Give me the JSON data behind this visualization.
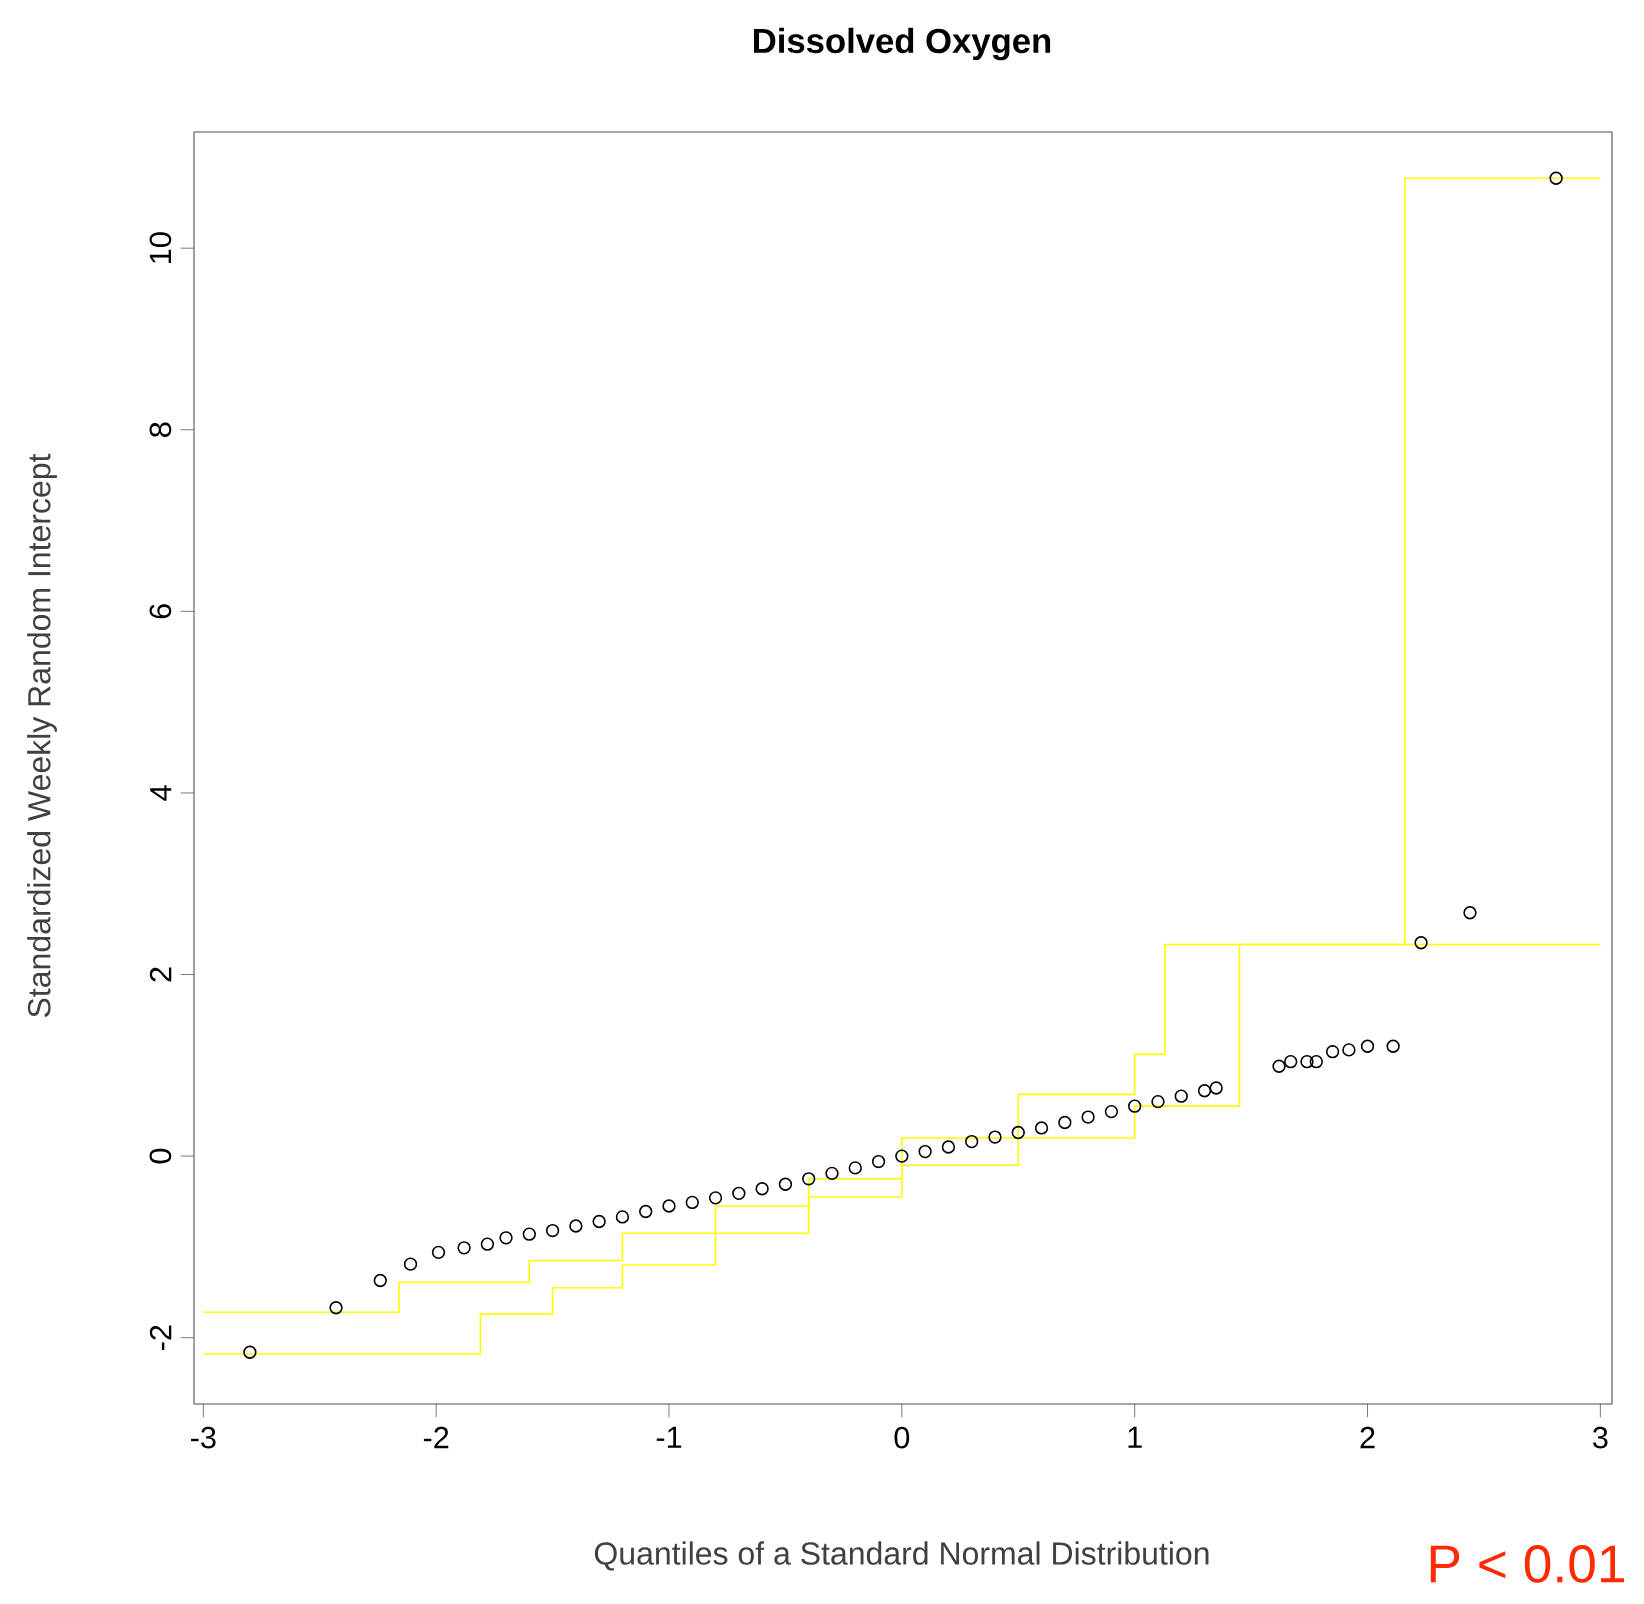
{
  "chart_data": {
    "type": "scatter",
    "title": "Dissolved Oxygen",
    "xlabel": "Quantiles of a Standard Normal Distribution",
    "ylabel": "Standardized Weekly Random Intercept",
    "annotations": [
      "P < 0.01"
    ],
    "xlim": [
      -3.04,
      3.05
    ],
    "ylim": [
      -2.73,
      11.28
    ],
    "xticks": [
      -3,
      -2,
      -1,
      0,
      1,
      2,
      3
    ],
    "yticks": [
      -2,
      0,
      2,
      4,
      6,
      8,
      10
    ],
    "series": [
      {
        "type": "step",
        "color": "#ffff00",
        "x": [
          -3,
          -2.16,
          -1.6,
          -1.2,
          -0.8,
          -0.4,
          0,
          0.5,
          1.0,
          1.13,
          2.16,
          3.0
        ],
        "values": [
          -1.72,
          -1.39,
          -1.15,
          -0.85,
          -0.55,
          -0.25,
          0.2,
          0.68,
          1.12,
          2.33,
          10.77,
          10.77
        ]
      },
      {
        "type": "step",
        "color": "#ffff00",
        "x": [
          -3,
          -1.81,
          -1.5,
          -1.2,
          -0.8,
          -0.4,
          0,
          0.5,
          1.0,
          1.45,
          3.0
        ],
        "values": [
          -2.18,
          -1.74,
          -1.45,
          -1.2,
          -0.85,
          -0.45,
          -0.1,
          0.2,
          0.55,
          2.33,
          2.33
        ]
      },
      {
        "type": "scatter",
        "color": "#000000",
        "marker": "circle",
        "x": [
          -2.8,
          -2.43,
          -2.24,
          -2.11,
          -1.99,
          -1.88,
          -1.78,
          -1.7,
          -1.6,
          -1.5,
          -1.4,
          -1.3,
          -1.2,
          -1.1,
          -1.0,
          -0.9,
          -0.8,
          -0.7,
          -0.6,
          -0.5,
          -0.4,
          -0.3,
          -0.2,
          -0.1,
          0,
          0.1,
          0.2,
          0.3,
          0.4,
          0.5,
          0.6,
          0.7,
          0.8,
          0.9,
          1.0,
          1.1,
          1.2,
          1.3,
          1.35,
          1.62,
          1.67,
          1.74,
          1.78,
          1.85,
          1.92,
          2.0,
          2.11,
          2.23,
          2.44,
          2.81
        ],
        "values": [
          -2.16,
          -1.67,
          -1.37,
          -1.19,
          -1.06,
          -1.01,
          -0.97,
          -0.9,
          -0.86,
          -0.82,
          -0.77,
          -0.72,
          -0.67,
          -0.61,
          -0.55,
          -0.51,
          -0.46,
          -0.41,
          -0.36,
          -0.31,
          -0.25,
          -0.19,
          -0.13,
          -0.06,
          0,
          0.05,
          0.1,
          0.16,
          0.21,
          0.26,
          0.31,
          0.37,
          0.43,
          0.49,
          0.55,
          0.6,
          0.66,
          0.72,
          0.75,
          0.99,
          1.04,
          1.04,
          1.04,
          1.15,
          1.17,
          1.21,
          1.21,
          2.35,
          2.68,
          10.77
        ]
      }
    ]
  }
}
